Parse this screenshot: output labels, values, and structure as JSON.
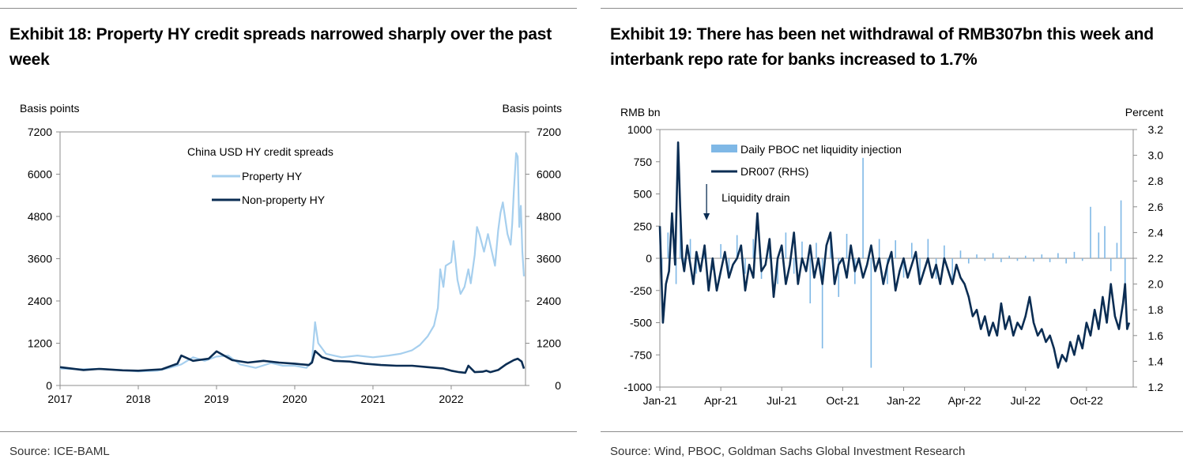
{
  "exhibit18": {
    "title": "Exhibit 18: Property HY credit spreads narrowed sharply over the past week",
    "source": "Source: ICE-BAML"
  },
  "exhibit19": {
    "title": "Exhibit 19: There has been net withdrawal of RMB307bn this week and interbank repo rate for banks increased to 1.7%",
    "source": "Source: Wind, PBOC, Goldman Sachs Global Investment Research"
  },
  "colors": {
    "light_blue": "#a6cfee",
    "navy": "#0b2d53",
    "axis": "#8c8c8c",
    "bar_blue": "#7fb8e6"
  },
  "chart_data": [
    {
      "id": "exhibit18",
      "type": "line",
      "title": "Exhibit 18: Property HY credit spreads narrowed sharply over the past week",
      "ylabel_left": "Basis points",
      "ylabel_right": "Basis points",
      "ylim": [
        0,
        7200
      ],
      "yticks": [
        0,
        1200,
        2400,
        3600,
        4800,
        6000,
        7200
      ],
      "ytick_labels": [
        "0",
        "1200",
        "2400",
        "3600",
        "4800",
        "6000",
        "7200"
      ],
      "xlim": [
        2017.0,
        2022.95
      ],
      "xticks": [
        2017,
        2018,
        2019,
        2020,
        2021,
        2022
      ],
      "xtick_labels": [
        "2017",
        "2018",
        "2019",
        "2020",
        "2021",
        "2022"
      ],
      "legend_title": "China USD HY credit spreads",
      "legend_position": "top-left",
      "grid": false,
      "series": [
        {
          "name": "Property HY",
          "color": "#a6cfee",
          "x": [
            2017.0,
            2017.25,
            2017.5,
            2017.75,
            2018.0,
            2018.25,
            2018.4,
            2018.55,
            2018.7,
            2018.85,
            2019.0,
            2019.15,
            2019.3,
            2019.5,
            2019.7,
            2019.85,
            2020.0,
            2020.15,
            2020.22,
            2020.26,
            2020.3,
            2020.4,
            2020.6,
            2020.8,
            2021.0,
            2021.2,
            2021.35,
            2021.5,
            2021.6,
            2021.7,
            2021.78,
            2021.83,
            2021.86,
            2021.9,
            2021.93,
            2022.0,
            2022.03,
            2022.08,
            2022.12,
            2022.17,
            2022.22,
            2022.25,
            2022.3,
            2022.33,
            2022.36,
            2022.42,
            2022.47,
            2022.52,
            2022.56,
            2022.6,
            2022.63,
            2022.66,
            2022.72,
            2022.76,
            2022.78,
            2022.8,
            2022.83,
            2022.85,
            2022.87,
            2022.89,
            2022.91,
            2022.93
          ],
          "values": [
            480,
            460,
            470,
            440,
            400,
            420,
            500,
            600,
            800,
            700,
            820,
            850,
            600,
            500,
            640,
            560,
            560,
            500,
            700,
            1800,
            1200,
            900,
            800,
            850,
            800,
            850,
            900,
            1000,
            1150,
            1400,
            1700,
            2200,
            3300,
            2800,
            3400,
            3500,
            4100,
            3000,
            2600,
            2800,
            3300,
            2900,
            3700,
            4500,
            4300,
            3800,
            4300,
            3800,
            3400,
            4400,
            4900,
            5200,
            4300,
            4000,
            4600,
            5500,
            6600,
            6500,
            4500,
            5100,
            3800,
            3100
          ]
        },
        {
          "name": "Non-property HY",
          "color": "#0b2d53",
          "x": [
            2017.0,
            2017.3,
            2017.5,
            2017.8,
            2018.0,
            2018.3,
            2018.5,
            2018.55,
            2018.7,
            2018.9,
            2019.0,
            2019.2,
            2019.4,
            2019.6,
            2019.8,
            2020.0,
            2020.18,
            2020.22,
            2020.26,
            2020.35,
            2020.5,
            2020.7,
            2020.9,
            2021.1,
            2021.3,
            2021.5,
            2021.7,
            2021.9,
            2022.0,
            2022.1,
            2022.18,
            2022.22,
            2022.3,
            2022.4,
            2022.45,
            2022.5,
            2022.6,
            2022.7,
            2022.8,
            2022.85,
            2022.9,
            2022.93
          ],
          "values": [
            520,
            440,
            470,
            430,
            420,
            460,
            620,
            850,
            700,
            760,
            970,
            720,
            650,
            700,
            650,
            620,
            580,
            650,
            980,
            800,
            700,
            680,
            620,
            580,
            560,
            560,
            520,
            480,
            420,
            380,
            360,
            560,
            380,
            390,
            420,
            380,
            440,
            600,
            720,
            760,
            680,
            480
          ]
        }
      ]
    },
    {
      "id": "exhibit19",
      "type": "bar",
      "title": "Exhibit 19: There has been net withdrawal of RMB307bn this week and interbank repo rate for banks increased to 1.7%",
      "ylabel_left": "RMB bn",
      "ylabel_right": "Percent",
      "ylim_left": [
        -1000,
        1000
      ],
      "yticks_left": [
        -1000,
        -750,
        -500,
        -250,
        0,
        250,
        500,
        750,
        1000
      ],
      "ytick_labels_left": [
        "-1000",
        "-750",
        "-500",
        "-250",
        "0",
        "250",
        "500",
        "750",
        "1000"
      ],
      "ylim_right": [
        1.2,
        3.2
      ],
      "yticks_right": [
        1.2,
        1.4,
        1.6,
        1.8,
        2.0,
        2.2,
        2.4,
        2.6,
        2.8,
        3.0,
        3.2
      ],
      "ytick_labels_right": [
        "1.2",
        "1.4",
        "1.6",
        "1.8",
        "2.0",
        "2.2",
        "2.4",
        "2.6",
        "2.8",
        "3.0",
        "3.2"
      ],
      "xlim": [
        0,
        23.3
      ],
      "xticks": [
        0,
        3,
        6,
        9,
        12,
        15,
        18,
        21
      ],
      "xtick_labels": [
        "Jan-21",
        "Apr-21",
        "Jul-21",
        "Oct-21",
        "Jan-22",
        "Apr-22",
        "Jul-22",
        "Oct-22"
      ],
      "legend_position": "top-left",
      "annotation": {
        "text": "Liquidity drain",
        "x": 2.3,
        "y": 550
      },
      "grid": false,
      "series": [
        {
          "name": "Daily PBOC net liquidity injection",
          "type": "bar",
          "axis": "left",
          "color": "#7fb8e6",
          "x": [
            0.1,
            0.4,
            0.8,
            1.0,
            1.2,
            1.5,
            1.8,
            2.2,
            2.6,
            3.0,
            3.4,
            3.8,
            4.2,
            4.6,
            5.0,
            5.4,
            5.8,
            6.2,
            6.6,
            7.0,
            7.4,
            7.7,
            8.0,
            8.4,
            8.8,
            9.2,
            9.6,
            10.0,
            10.4,
            10.8,
            11.2,
            11.6,
            12.0,
            12.4,
            12.8,
            13.2,
            13.6,
            14.0,
            14.4,
            14.8,
            15.2,
            15.6,
            16.0,
            16.4,
            16.8,
            17.2,
            17.6,
            18.0,
            18.4,
            18.8,
            19.2,
            19.6,
            20.0,
            20.4,
            20.8,
            21.2,
            21.6,
            21.9,
            22.2,
            22.5,
            22.7,
            22.9
          ],
          "values": [
            -150,
            200,
            -200,
            300,
            -100,
            150,
            -120,
            100,
            -90,
            110,
            -140,
            180,
            -120,
            150,
            -160,
            140,
            -200,
            200,
            -120,
            130,
            -350,
            120,
            -700,
            160,
            -300,
            190,
            -200,
            780,
            -850,
            150,
            -200,
            140,
            -150,
            120,
            -180,
            150,
            -160,
            100,
            -180,
            60,
            -40,
            30,
            -20,
            40,
            -30,
            20,
            -20,
            20,
            -25,
            30,
            -30,
            40,
            -40,
            50,
            -20,
            400,
            200,
            250,
            -100,
            120,
            450,
            -307
          ]
        },
        {
          "name": "DR007 (RHS)",
          "type": "line",
          "axis": "right",
          "color": "#0b2d53",
          "x": [
            0.0,
            0.15,
            0.3,
            0.45,
            0.6,
            0.75,
            0.9,
            1.0,
            1.1,
            1.2,
            1.35,
            1.5,
            1.65,
            1.8,
            2.0,
            2.2,
            2.4,
            2.6,
            2.8,
            3.0,
            3.2,
            3.4,
            3.6,
            3.8,
            4.0,
            4.2,
            4.4,
            4.6,
            4.8,
            5.0,
            5.2,
            5.4,
            5.6,
            5.8,
            6.0,
            6.2,
            6.4,
            6.6,
            6.8,
            7.0,
            7.2,
            7.4,
            7.6,
            7.8,
            8.0,
            8.2,
            8.4,
            8.6,
            8.8,
            9.0,
            9.2,
            9.4,
            9.6,
            9.8,
            10.0,
            10.2,
            10.4,
            10.6,
            10.8,
            11.0,
            11.2,
            11.4,
            11.6,
            11.8,
            12.0,
            12.2,
            12.4,
            12.6,
            12.8,
            13.0,
            13.2,
            13.4,
            13.6,
            13.8,
            14.0,
            14.2,
            14.4,
            14.6,
            14.8,
            15.0,
            15.2,
            15.4,
            15.6,
            15.8,
            16.0,
            16.2,
            16.4,
            16.6,
            16.8,
            17.0,
            17.2,
            17.4,
            17.6,
            17.8,
            18.0,
            18.2,
            18.4,
            18.6,
            18.8,
            19.0,
            19.2,
            19.4,
            19.6,
            19.8,
            20.0,
            20.2,
            20.4,
            20.6,
            20.8,
            21.0,
            21.2,
            21.4,
            21.6,
            21.8,
            22.0,
            22.2,
            22.4,
            22.6,
            22.8,
            22.9,
            23.0,
            23.1
          ],
          "values": [
            2.45,
            1.7,
            2.0,
            2.1,
            2.55,
            2.15,
            3.1,
            2.6,
            2.2,
            2.1,
            2.3,
            2.15,
            2.0,
            2.25,
            2.1,
            2.3,
            1.95,
            2.2,
            1.95,
            2.1,
            2.25,
            2.05,
            2.15,
            2.2,
            2.3,
            1.95,
            2.15,
            2.05,
            2.55,
            2.1,
            2.15,
            2.35,
            1.9,
            2.2,
            2.3,
            2.0,
            2.15,
            2.4,
            2.0,
            2.2,
            2.1,
            2.3,
            2.05,
            2.2,
            2.0,
            2.3,
            2.4,
            2.0,
            2.15,
            2.2,
            2.05,
            2.3,
            2.1,
            2.2,
            2.05,
            2.15,
            2.3,
            2.1,
            2.2,
            2.0,
            2.15,
            2.25,
            1.95,
            2.1,
            2.2,
            2.05,
            2.15,
            2.25,
            2.0,
            2.1,
            2.2,
            2.05,
            2.15,
            2.0,
            2.2,
            2.1,
            2.0,
            2.15,
            2.05,
            2.0,
            1.9,
            1.75,
            1.8,
            1.65,
            1.75,
            1.6,
            1.7,
            1.6,
            1.85,
            1.65,
            1.75,
            1.6,
            1.7,
            1.65,
            1.75,
            1.9,
            1.7,
            1.6,
            1.65,
            1.55,
            1.6,
            1.5,
            1.35,
            1.45,
            1.4,
            1.55,
            1.45,
            1.6,
            1.5,
            1.7,
            1.6,
            1.8,
            1.65,
            1.9,
            1.7,
            2.0,
            1.75,
            1.65,
            1.85,
            2.0,
            1.65,
            1.7
          ]
        }
      ]
    }
  ]
}
